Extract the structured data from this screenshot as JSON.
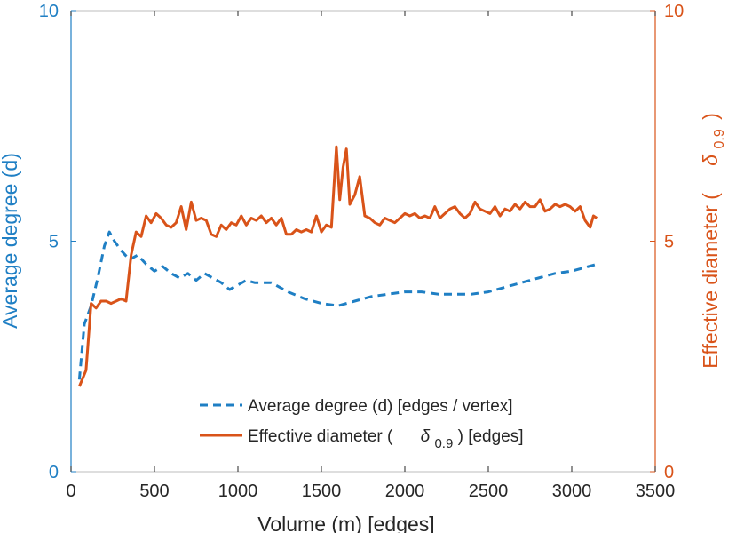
{
  "colors": {
    "left": "#1f7fc4",
    "right": "#d95319",
    "axis": "#262626",
    "frame": "#bdbdbd"
  },
  "chart_data": {
    "type": "line",
    "title": "",
    "xlabel": "Volume (m) [edges]",
    "ylabel_left": "Average degree (d)",
    "ylabel_right_prefix": "Effective diameter (",
    "ylabel_right_symbol": "δ",
    "ylabel_right_subscript": "0.9",
    "ylabel_right_suffix": ")",
    "xlim": [
      0,
      3500
    ],
    "ylim_left": [
      0,
      10
    ],
    "ylim_right": [
      0,
      10
    ],
    "x_ticks": [
      "0",
      "500",
      "1000",
      "1500",
      "2000",
      "2500",
      "3000",
      "3500"
    ],
    "x_tick_values": [
      0,
      500,
      1000,
      1500,
      2000,
      2500,
      3000,
      3500
    ],
    "y_left_ticks": [
      "0",
      "5",
      "10"
    ],
    "y_left_tick_values": [
      0,
      5,
      10
    ],
    "y_right_ticks": [
      "0",
      "5",
      "10"
    ],
    "y_right_tick_values": [
      0,
      5,
      10
    ],
    "legend": {
      "location": "bottom-right",
      "entries": [
        {
          "prefix": "Average degree (d) [edges / vertex]",
          "symbol": "",
          "subscript": "",
          "suffix": ""
        },
        {
          "prefix": "Effective diameter (",
          "symbol": "δ",
          "subscript": "0.9",
          "suffix": ") [edges]"
        }
      ]
    },
    "series": [
      {
        "name": "Average degree (d) [edges / vertex]",
        "axis": "left",
        "style": "dashed",
        "x": [
          50,
          80,
          120,
          160,
          200,
          230,
          260,
          300,
          350,
          400,
          450,
          500,
          550,
          600,
          650,
          700,
          750,
          800,
          850,
          900,
          950,
          1000,
          1050,
          1100,
          1200,
          1300,
          1400,
          1500,
          1600,
          1700,
          1800,
          1900,
          2000,
          2100,
          2200,
          2300,
          2400,
          2500,
          2600,
          2700,
          2800,
          2900,
          3000,
          3100,
          3150
        ],
        "values": [
          2.0,
          3.2,
          3.6,
          4.2,
          4.9,
          5.2,
          5.0,
          4.8,
          4.6,
          4.7,
          4.5,
          4.35,
          4.45,
          4.3,
          4.2,
          4.3,
          4.15,
          4.3,
          4.2,
          4.1,
          3.95,
          4.05,
          4.15,
          4.1,
          4.1,
          3.9,
          3.75,
          3.65,
          3.6,
          3.7,
          3.8,
          3.85,
          3.9,
          3.9,
          3.85,
          3.85,
          3.85,
          3.9,
          4.0,
          4.1,
          4.2,
          4.3,
          4.35,
          4.45,
          4.5
        ]
      },
      {
        "name": "Effective diameter (δ0.9) [edges]",
        "axis": "right",
        "style": "solid",
        "x": [
          50,
          90,
          120,
          150,
          180,
          210,
          240,
          270,
          300,
          330,
          360,
          390,
          420,
          450,
          480,
          510,
          540,
          570,
          600,
          630,
          660,
          690,
          720,
          750,
          780,
          810,
          840,
          870,
          900,
          930,
          960,
          990,
          1020,
          1050,
          1080,
          1110,
          1140,
          1170,
          1200,
          1230,
          1260,
          1290,
          1320,
          1350,
          1380,
          1410,
          1440,
          1470,
          1500,
          1530,
          1560,
          1590,
          1610,
          1630,
          1650,
          1670,
          1700,
          1730,
          1760,
          1790,
          1820,
          1850,
          1880,
          1910,
          1940,
          1970,
          2000,
          2030,
          2060,
          2090,
          2120,
          2150,
          2180,
          2210,
          2240,
          2270,
          2300,
          2330,
          2360,
          2390,
          2420,
          2450,
          2480,
          2510,
          2540,
          2570,
          2600,
          2630,
          2660,
          2690,
          2720,
          2750,
          2780,
          2810,
          2840,
          2870,
          2900,
          2930,
          2960,
          2990,
          3020,
          3050,
          3080,
          3110,
          3130,
          3150
        ],
        "values": [
          1.85,
          2.2,
          3.65,
          3.55,
          3.7,
          3.7,
          3.65,
          3.7,
          3.75,
          3.7,
          4.7,
          5.2,
          5.1,
          5.55,
          5.4,
          5.6,
          5.5,
          5.35,
          5.3,
          5.4,
          5.75,
          5.25,
          5.85,
          5.45,
          5.5,
          5.45,
          5.15,
          5.1,
          5.35,
          5.25,
          5.4,
          5.35,
          5.55,
          5.35,
          5.5,
          5.45,
          5.55,
          5.4,
          5.5,
          5.35,
          5.5,
          5.15,
          5.15,
          5.25,
          5.2,
          5.25,
          5.2,
          5.55,
          5.2,
          5.35,
          5.3,
          7.05,
          5.9,
          6.6,
          7.0,
          5.8,
          6.0,
          6.4,
          5.55,
          5.5,
          5.4,
          5.35,
          5.5,
          5.45,
          5.4,
          5.5,
          5.6,
          5.55,
          5.6,
          5.5,
          5.55,
          5.5,
          5.75,
          5.5,
          5.6,
          5.7,
          5.75,
          5.6,
          5.5,
          5.6,
          5.85,
          5.7,
          5.65,
          5.6,
          5.75,
          5.55,
          5.7,
          5.65,
          5.8,
          5.7,
          5.85,
          5.75,
          5.75,
          5.9,
          5.65,
          5.7,
          5.8,
          5.75,
          5.8,
          5.75,
          5.65,
          5.75,
          5.45,
          5.3,
          5.55,
          5.5
        ]
      }
    ]
  }
}
